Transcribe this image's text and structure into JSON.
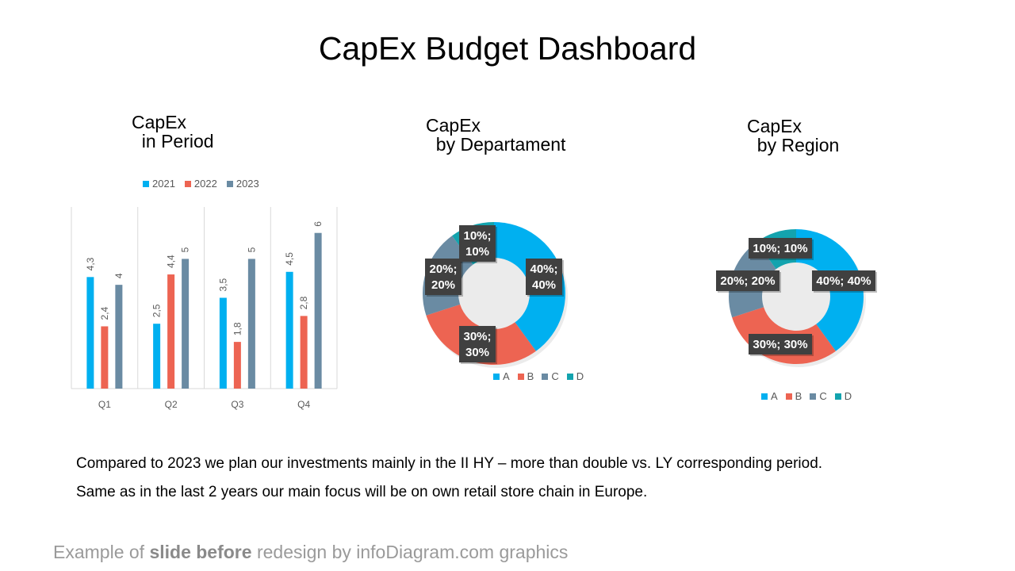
{
  "title": "CapEx Budget Dashboard",
  "colors": {
    "c2021": "#00b0f0",
    "c2022": "#ed6452",
    "c2023": "#6a8ba3",
    "A": "#00b0f0",
    "B": "#ed6452",
    "C": "#6a8ba3",
    "D": "#13a3ae"
  },
  "chart_data": [
    {
      "type": "bar",
      "title": "CapEx\n  in Period",
      "categories": [
        "Q1",
        "Q2",
        "Q3",
        "Q4"
      ],
      "series": [
        {
          "name": "2021",
          "values": [
            4.3,
            2.5,
            3.5,
            4.5
          ],
          "labels": [
            "4,3",
            "2,5",
            "3,5",
            "4,5"
          ]
        },
        {
          "name": "2022",
          "values": [
            2.4,
            4.4,
            1.8,
            2.8
          ],
          "labels": [
            "2,4",
            "4,4",
            "1,8",
            "2,8"
          ]
        },
        {
          "name": "2023",
          "values": [
            4,
            5,
            5,
            6
          ],
          "labels": [
            "4",
            "5",
            "5",
            "6"
          ]
        }
      ],
      "ylim": [
        0,
        7
      ],
      "legend": "top"
    },
    {
      "type": "pie",
      "title": "CapEx\n  by Departament",
      "categories": [
        "A",
        "B",
        "C",
        "D"
      ],
      "values": [
        40,
        30,
        20,
        10
      ],
      "labels": [
        [
          "40%;",
          "40%"
        ],
        [
          "30%;",
          "30%"
        ],
        [
          "20%;",
          "20%"
        ],
        [
          "10%;",
          "10%"
        ]
      ],
      "legend": "bottom"
    },
    {
      "type": "pie",
      "title": "CapEx\n  by Region",
      "categories": [
        "A",
        "B",
        "C",
        "D"
      ],
      "values": [
        40,
        30,
        20,
        10
      ],
      "labels": [
        [
          "40%; 40%"
        ],
        [
          "30%; 30%"
        ],
        [
          "20%; 20%"
        ],
        [
          "10%; 10%"
        ]
      ],
      "legend": "bottom"
    }
  ],
  "body": {
    "line1": "Compared to 2023 we plan our investments mainly in the II HY – more than double vs. LY corresponding period.",
    "line2": "Same as in the last 2 years our main focus will be on own retail store chain in Europe."
  },
  "footer": {
    "pre": "Example of ",
    "bold": "slide before",
    "post": " redesign by infoDiagram.com graphics"
  }
}
